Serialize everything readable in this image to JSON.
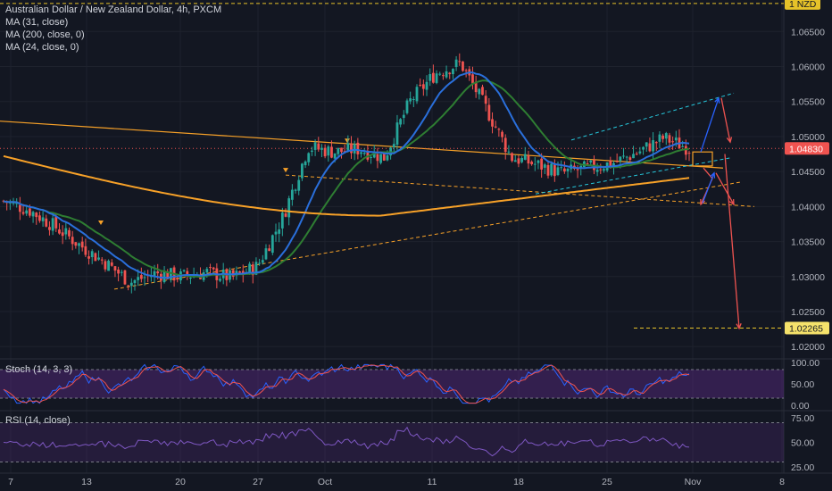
{
  "header": {
    "title": "Australian Dollar / New Zealand Dollar, 4h, PXCM",
    "indicators": [
      "MA (31, close)",
      "MA (200, close, 0)",
      "MA (24, close, 0)"
    ]
  },
  "colors": {
    "background": "#131722",
    "up": "#26a69a",
    "down": "#ef5350",
    "ma31": "#2a6fdb",
    "ma200": "#f7a128",
    "ma24": "#2e7d32",
    "stoch_k": "#2962ff",
    "stoch_d": "#ef5350",
    "rsi": "#7e57c2",
    "band": "#5b2a86"
  },
  "price_axis": {
    "ticks": [
      "1.06500",
      "1.06000",
      "1.05500",
      "1.05000",
      "1.04500",
      "1.04000",
      "1.03500",
      "1.03000",
      "1.02500",
      "1.02000"
    ],
    "tick_values": [
      1.065,
      1.06,
      1.055,
      1.05,
      1.045,
      1.04,
      1.035,
      1.03,
      1.025,
      1.02
    ],
    "top_badge": "NZD",
    "current_price": "1.04830",
    "target_price": "1.02265"
  },
  "date_axis": {
    "labels": [
      "7",
      "13",
      "20",
      "27",
      "Oct",
      "11",
      "18",
      "25",
      "Nov",
      "8"
    ]
  },
  "stoch": {
    "label": "Stoch (14, 3, 3)",
    "ticks": [
      "100.00",
      "50.00",
      "0.00"
    ]
  },
  "rsi": {
    "label": "RSI (14, close)",
    "ticks": [
      "75.00",
      "50.00",
      "25.00"
    ]
  },
  "chart_data": {
    "type": "candlestick",
    "symbol": "AUD/NZD",
    "timeframe": "4h",
    "ylim": [
      1.0185,
      1.0695
    ],
    "x_labels": [
      "7",
      "13",
      "20",
      "27",
      "Oct",
      "11",
      "18",
      "25",
      "Nov",
      "8"
    ],
    "close_path": [
      {
        "t": "7",
        "close": 1.0408
      },
      {
        "t": "9",
        "close": 1.0395
      },
      {
        "t": "11",
        "close": 1.0372
      },
      {
        "t": "13",
        "close": 1.0345
      },
      {
        "t": "15",
        "close": 1.032
      },
      {
        "t": "17",
        "close": 1.0292
      },
      {
        "t": "19",
        "close": 1.0305
      },
      {
        "t": "21",
        "close": 1.03
      },
      {
        "t": "23",
        "close": 1.0306
      },
      {
        "t": "25",
        "close": 1.0298
      },
      {
        "t": "27",
        "close": 1.0315
      },
      {
        "t": "29",
        "close": 1.0385
      },
      {
        "t": "Oct",
        "close": 1.0485
      },
      {
        "t": "3",
        "close": 1.0478
      },
      {
        "t": "5",
        "close": 1.0482
      },
      {
        "t": "7",
        "close": 1.047
      },
      {
        "t": "9",
        "close": 1.055
      },
      {
        "t": "11",
        "close": 1.059
      },
      {
        "t": "13",
        "close": 1.0605
      },
      {
        "t": "15",
        "close": 1.054
      },
      {
        "t": "17",
        "close": 1.047
      },
      {
        "t": "19",
        "close": 1.046
      },
      {
        "t": "21",
        "close": 1.0448
      },
      {
        "t": "23",
        "close": 1.0455
      },
      {
        "t": "25",
        "close": 1.0462
      },
      {
        "t": "27",
        "close": 1.0478
      },
      {
        "t": "29",
        "close": 1.0498
      },
      {
        "t": "31",
        "close": 1.0483
      }
    ],
    "current_price": 1.0483,
    "target_price": 1.02265,
    "top_level": 1.069,
    "stoch_range": [
      0,
      100
    ],
    "rsi_range": [
      25,
      75
    ]
  }
}
